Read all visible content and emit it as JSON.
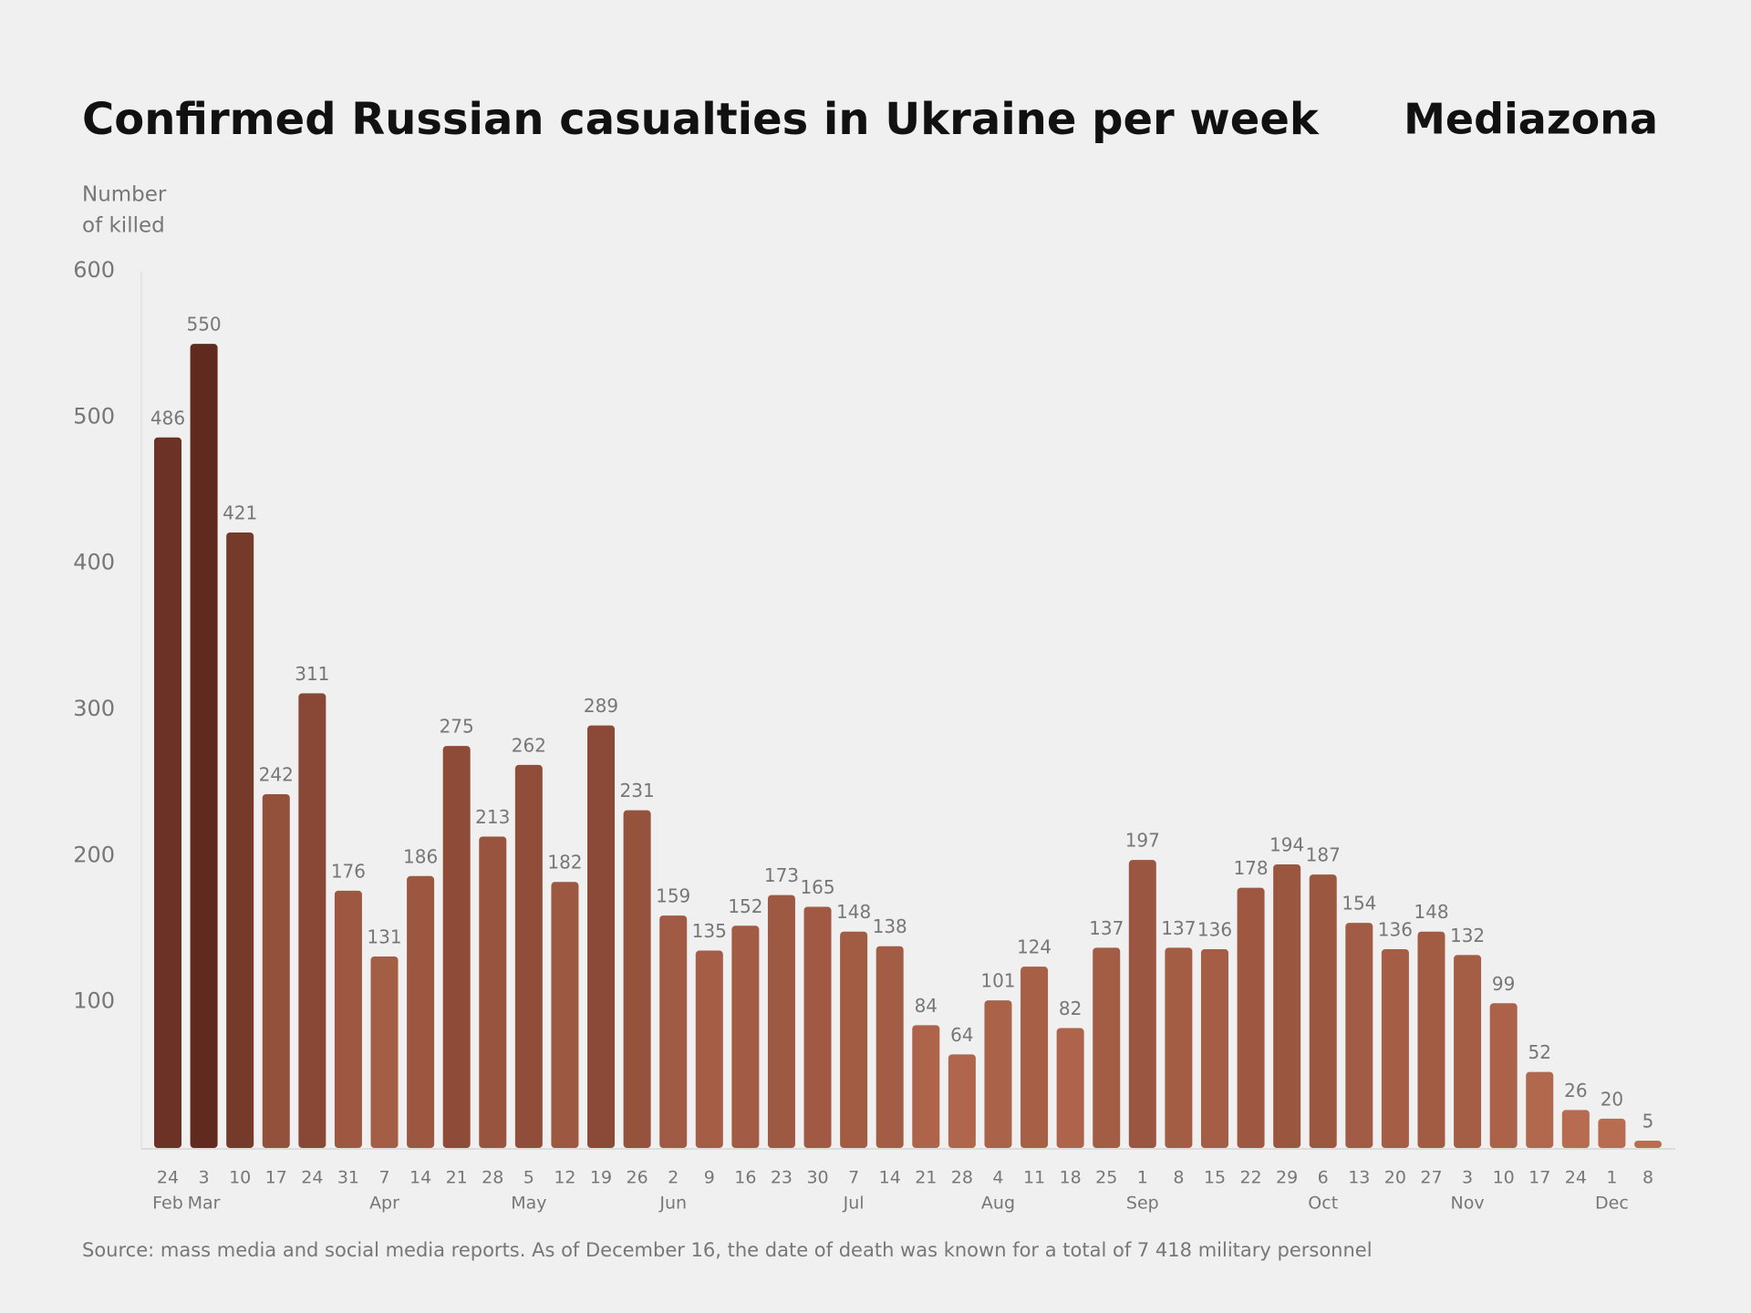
{
  "chart_data": {
    "type": "bar",
    "title": "Confirmed Russian casualties in Ukraine per week",
    "brand": "Mediazona",
    "y_label": [
      "Number",
      "of killed"
    ],
    "source": "Source: mass media and social media reports. As of December 16, the date of death was known for a total of 7 418 military personnel",
    "categories": [
      "24",
      "3",
      "10",
      "17",
      "24",
      "31",
      "7",
      "14",
      "21",
      "28",
      "5",
      "12",
      "19",
      "26",
      "2",
      "9",
      "16",
      "23",
      "30",
      "7",
      "14",
      "21",
      "28",
      "4",
      "11",
      "18",
      "25",
      "1",
      "8",
      "15",
      "22",
      "29",
      "6",
      "13",
      "20",
      "27",
      "3",
      "10",
      "17",
      "24",
      "1",
      "8"
    ],
    "months": [
      "Feb",
      "Mar",
      null,
      null,
      null,
      null,
      "Apr",
      null,
      null,
      null,
      "May",
      null,
      null,
      null,
      "Jun",
      null,
      null,
      null,
      null,
      "Jul",
      null,
      null,
      null,
      "Aug",
      null,
      null,
      null,
      "Sep",
      null,
      null,
      null,
      null,
      "Oct",
      null,
      null,
      null,
      "Nov",
      null,
      null,
      null,
      "Dec",
      null
    ],
    "values": [
      486,
      550,
      421,
      242,
      311,
      176,
      131,
      186,
      275,
      213,
      262,
      182,
      289,
      231,
      159,
      135,
      152,
      173,
      165,
      148,
      138,
      84,
      64,
      101,
      124,
      82,
      137,
      197,
      137,
      136,
      178,
      194,
      187,
      154,
      136,
      148,
      132,
      99,
      52,
      26,
      20,
      5
    ],
    "color_low": "#bb6e52",
    "color_high": "#58241a",
    "ylim": [
      0,
      600
    ],
    "yticks": [
      100,
      200,
      300,
      400,
      500,
      600
    ]
  }
}
